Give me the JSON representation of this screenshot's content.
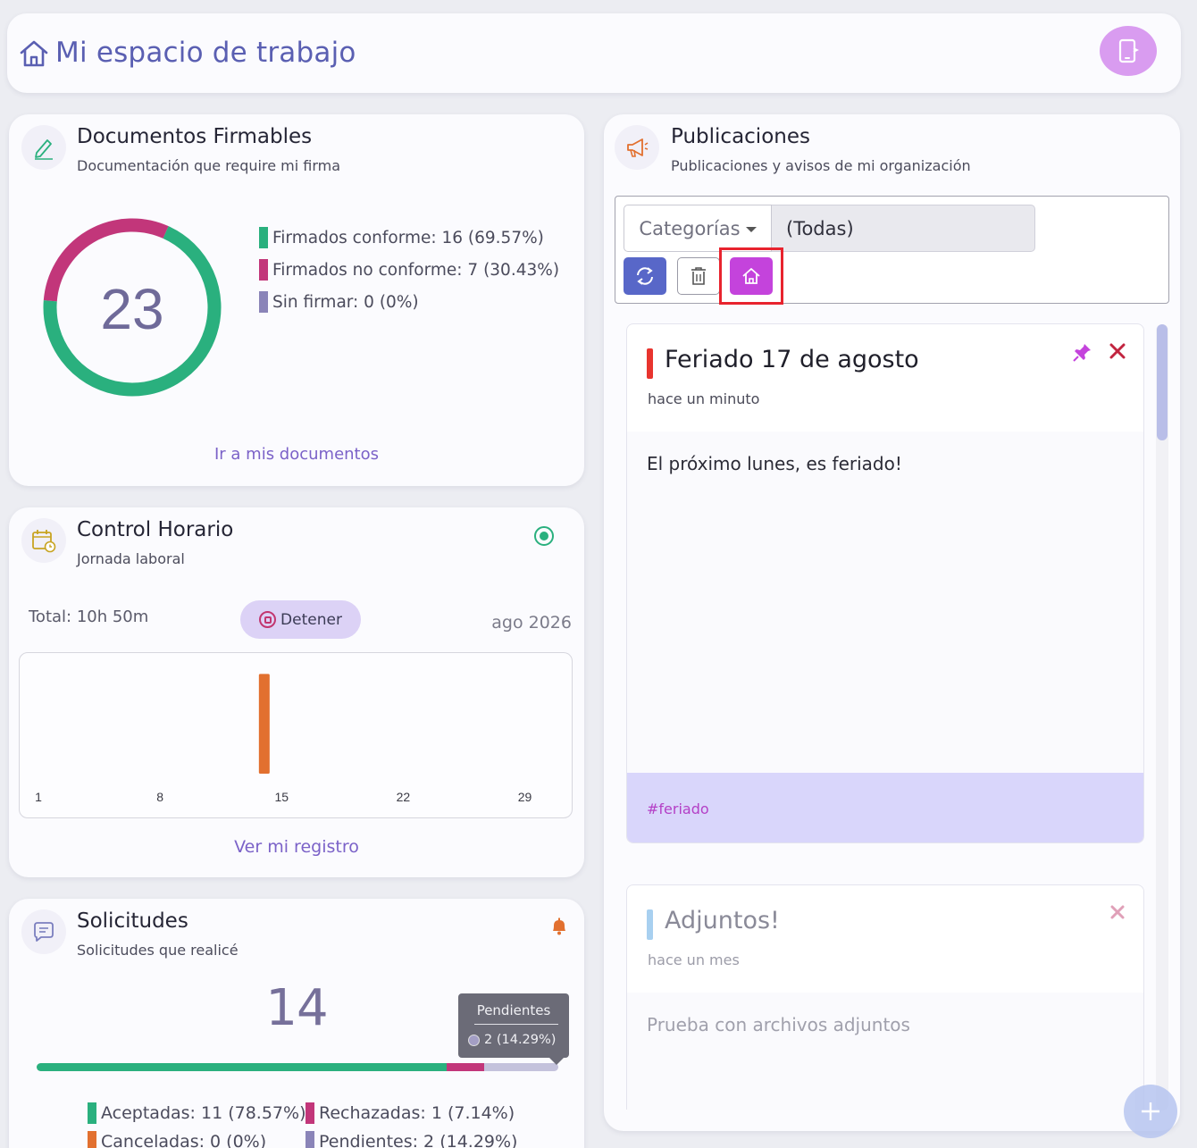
{
  "header": {
    "title": "Mi espacio de trabajo",
    "home_icon": "home-icon",
    "mobile_icon": "mobile-device-icon"
  },
  "docs": {
    "title": "Documentos Firmables",
    "subtitle": "Documentación que require mi firma",
    "icon": "pen-sign-icon",
    "total": "23",
    "legend": [
      {
        "label": "Firmados conforme: 16 (69.57%)",
        "color": "#2ab07e",
        "value": 16
      },
      {
        "label": "Firmados no conforme: 7 (30.43%)",
        "color": "#c2367a",
        "value": 7
      },
      {
        "label": "Sin firmar: 0 (0%)",
        "color": "#8a84b8",
        "value": 0
      }
    ],
    "link": "Ir a mis documentos"
  },
  "horario": {
    "title": "Control Horario",
    "subtitle": "Jornada laboral",
    "icon": "calendar-clock-icon",
    "status_icon": "radio-target-icon",
    "total": "Total: 10h 50m",
    "stop_label": "Detener",
    "month": "ago 2026",
    "link": "Ver mi registro",
    "chart_data": {
      "type": "bar",
      "ticks": [
        "1",
        "8",
        "15",
        "22",
        "29"
      ],
      "days": 31,
      "bars": [
        {
          "day": 14,
          "hours": 10.83
        }
      ],
      "bar_color": "#e2702f",
      "ylim": [
        0,
        24
      ]
    }
  },
  "solic": {
    "title": "Solicitudes",
    "subtitle": "Solicitudes que realicé",
    "icon": "chat-bubble-icon",
    "bell_icon": "bell-icon",
    "total": "14",
    "tooltip": {
      "title": "Pendientes",
      "value": "2 (14.29%)"
    },
    "segments": [
      {
        "name": "Aceptadas",
        "value": 11,
        "color": "#2ab07e"
      },
      {
        "name": "Rechazadas",
        "value": 1,
        "color": "#c2367a"
      },
      {
        "name": "Canceladas",
        "value": 0,
        "color": "#e2702f"
      },
      {
        "name": "Pendientes",
        "value": 2,
        "color": "#c4c2dc"
      }
    ],
    "legend": [
      {
        "label": "Aceptadas: 11 (78.57%)",
        "color": "#2ab07e"
      },
      {
        "label": "Rechazadas: 1 (7.14%)",
        "color": "#c2367a"
      },
      {
        "label": "Canceladas: 0 (0%)",
        "color": "#e2702f"
      },
      {
        "label": "Pendientes: 2 (14.29%)",
        "color": "#8a84b8"
      }
    ]
  },
  "pubs": {
    "title": "Publicaciones",
    "subtitle": "Publicaciones y avisos de mi organización",
    "icon": "megaphone-icon",
    "category_label": "Categorías",
    "category_value": "(Todas)",
    "posts": [
      {
        "title": "Feriado 17 de agosto",
        "time": "hace un minuto",
        "body": "El próximo lunes, es feriado!",
        "tag": "#feriado",
        "bar_color": "#e8342e"
      },
      {
        "title": "Adjuntos!",
        "time": "hace un mes",
        "body": "Prueba con archivos adjuntos",
        "bar_color": "#a8d0f0"
      }
    ]
  }
}
